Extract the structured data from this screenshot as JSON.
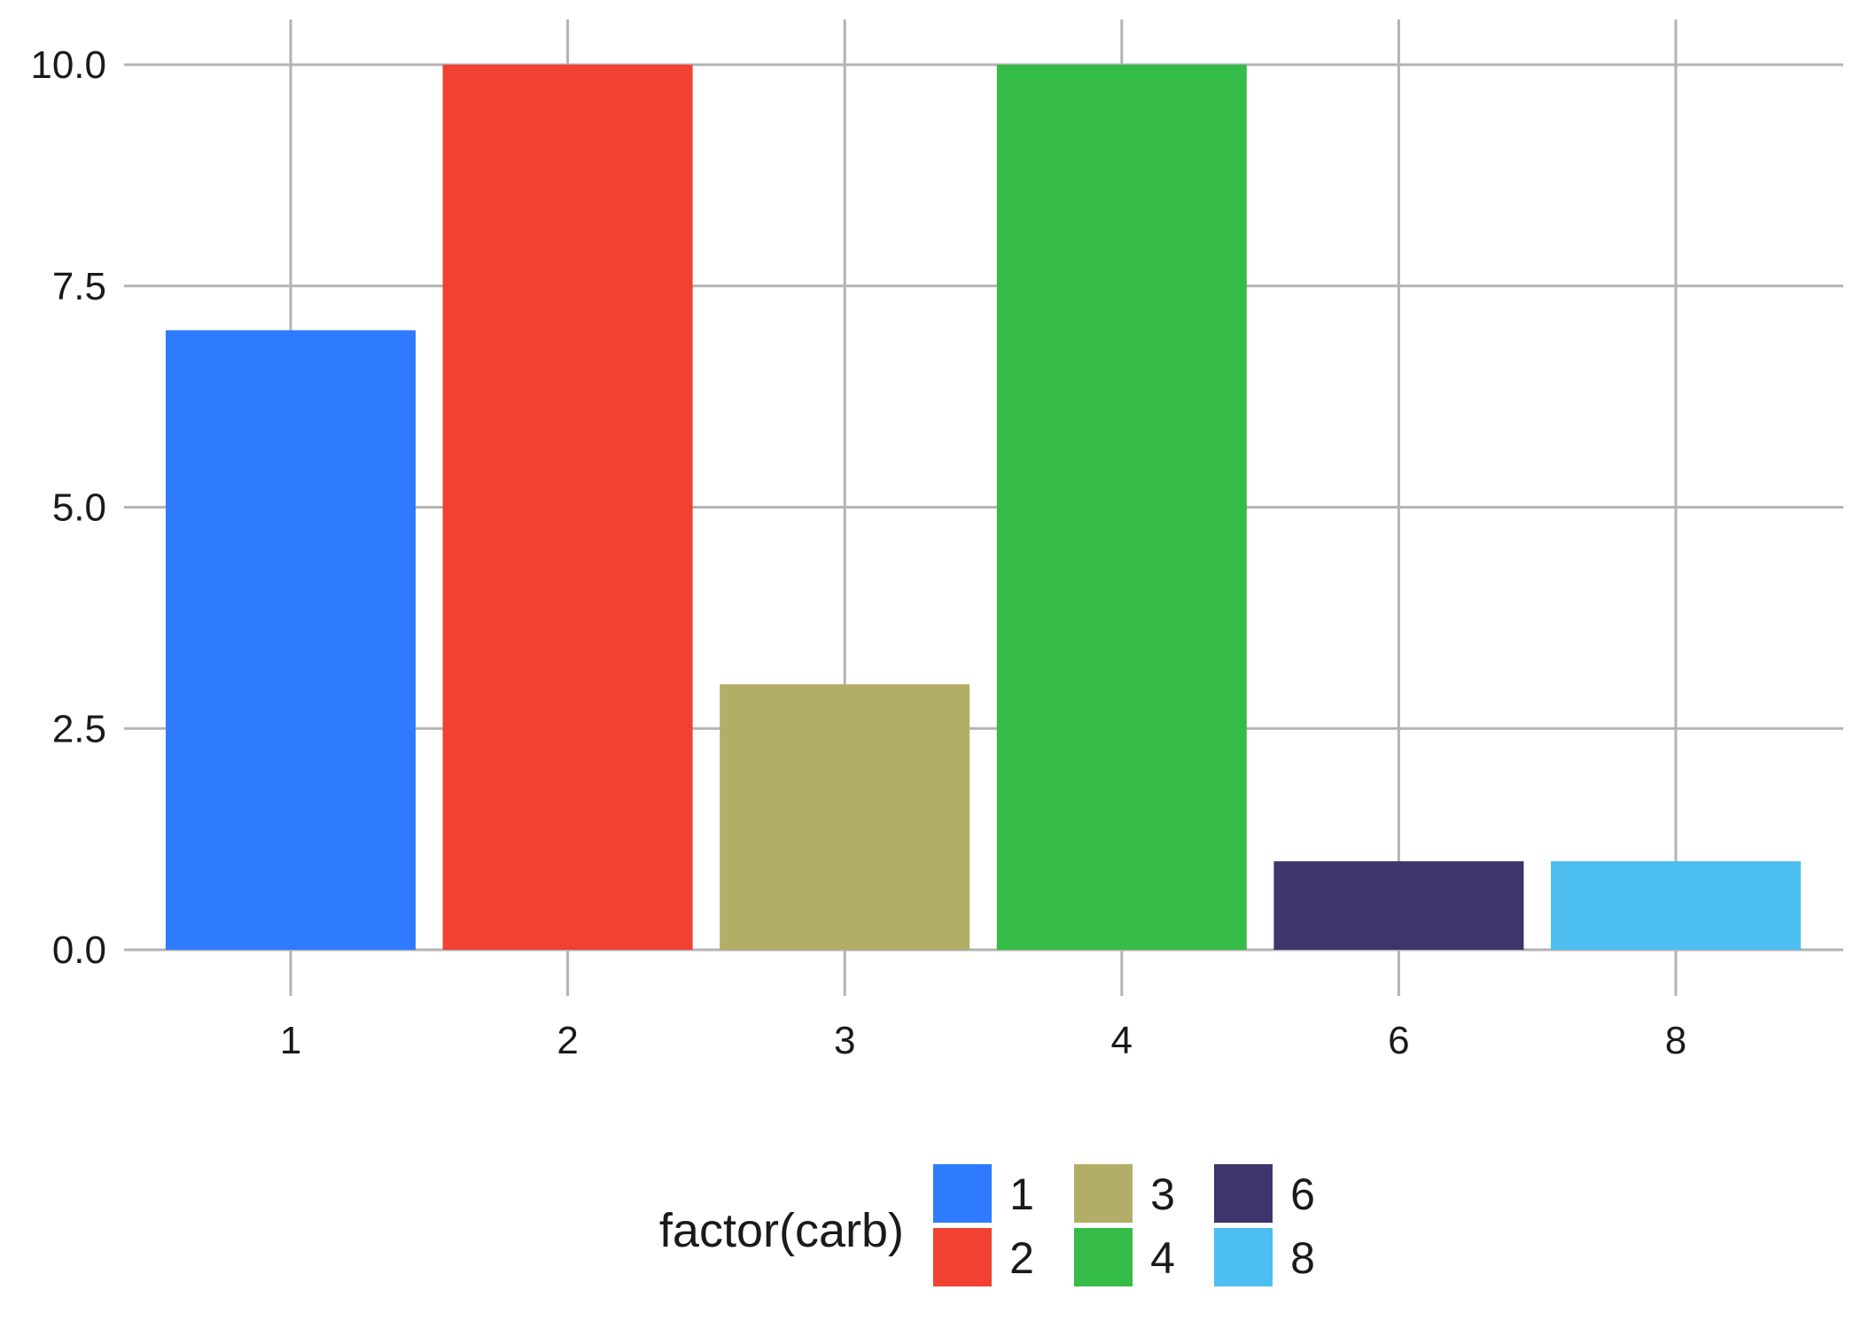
{
  "chart_data": {
    "type": "bar",
    "categories": [
      "1",
      "2",
      "3",
      "4",
      "6",
      "8"
    ],
    "values": [
      7,
      10,
      3,
      10,
      1,
      1
    ],
    "colors": [
      "#2e7bff",
      "#f04132",
      "#b3ae67",
      "#35bb47",
      "#3c366c",
      "#4cbef0"
    ],
    "y_ticks": [
      "0.0",
      "2.5",
      "5.0",
      "7.5",
      "10.0"
    ],
    "ylim": [
      0,
      10
    ],
    "title": "",
    "xlabel": "",
    "ylabel": "",
    "grid": true,
    "legend": {
      "title": "factor(carb)",
      "placement": "bottom",
      "entries": [
        "1",
        "2",
        "3",
        "4",
        "6",
        "8"
      ]
    }
  }
}
